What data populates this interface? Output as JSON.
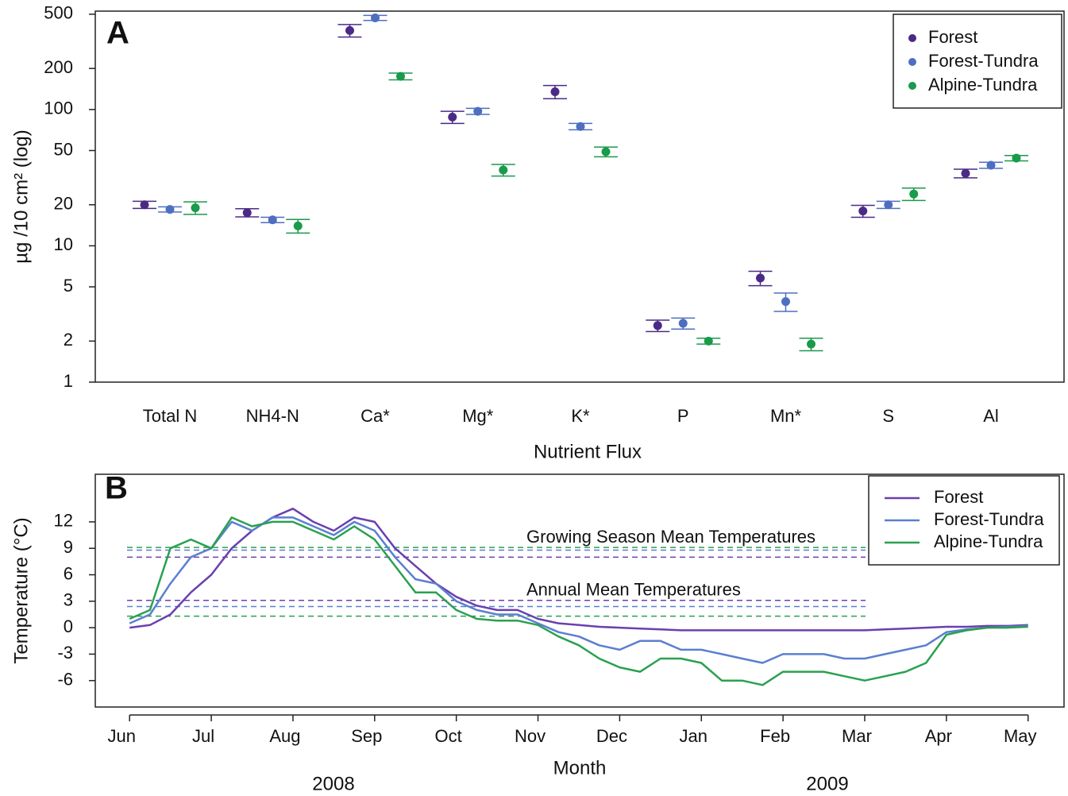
{
  "chart_data": [
    {
      "type": "dot",
      "panel_label": "A",
      "x_label": "Nutrient Flux",
      "y_label": "µg /10 cm² (log)",
      "log_scale": true,
      "ylim": [
        1,
        527
      ],
      "yticks": [
        1,
        2,
        5,
        10,
        20,
        50,
        100,
        200,
        500
      ],
      "grid": false,
      "legend": "upper right",
      "categories": [
        "Total N",
        "NH4-N",
        "Ca*",
        "Mg*",
        "K*",
        "P",
        "Mn*",
        "S",
        "Al"
      ],
      "series": [
        {
          "name": "Forest",
          "color": "#4b2a86",
          "values": [
            20,
            17.5,
            380,
            88,
            135,
            2.6,
            5.8,
            18,
            34
          ],
          "errors": [
            1.2,
            1.2,
            40,
            9,
            15,
            0.25,
            0.7,
            1.8,
            2.5
          ]
        },
        {
          "name": "Forest-Tundra",
          "color": "#4e6fc0",
          "values": [
            18.5,
            15.5,
            470,
            97,
            75,
            2.7,
            3.9,
            20,
            39
          ],
          "errors": [
            0.8,
            0.7,
            20,
            5,
            4,
            0.25,
            0.6,
            1.2,
            2
          ]
        },
        {
          "name": "Alpine-Tundra",
          "color": "#1a9a4b",
          "values": [
            19,
            14,
            175,
            36,
            49,
            2,
            1.9,
            24,
            44
          ],
          "errors": [
            2,
            1.6,
            10,
            3.5,
            4,
            0.1,
            0.2,
            2.5,
            2
          ]
        }
      ]
    },
    {
      "type": "line",
      "panel_label": "B",
      "x_label": "Month",
      "y_label": "Temperature (°C)",
      "x_group_labels": [
        "2008",
        "2009"
      ],
      "annotations": [
        "Growing Season Mean Temperatures",
        "Annual Mean Temperatures"
      ],
      "xlim": [
        -0.42,
        11.44
      ],
      "ylim": [
        -9,
        17.4
      ],
      "yticks": [
        -6,
        -3,
        0,
        3,
        6,
        9,
        12
      ],
      "grid": false,
      "legend": "upper right",
      "xticks": [
        {
          "value": 0,
          "label": "Jun"
        },
        {
          "value": 1,
          "label": "Jul"
        },
        {
          "value": 2,
          "label": "Aug"
        },
        {
          "value": 3,
          "label": "Sep"
        },
        {
          "value": 4,
          "label": "Oct"
        },
        {
          "value": 5,
          "label": "Nov"
        },
        {
          "value": 6,
          "label": "Dec"
        },
        {
          "value": 7,
          "label": "Jan"
        },
        {
          "value": 8,
          "label": "Feb"
        },
        {
          "value": 9,
          "label": "Mar"
        },
        {
          "value": 10,
          "label": "Apr"
        },
        {
          "value": 11,
          "label": "May"
        }
      ],
      "x": [
        0,
        0.25,
        0.5,
        0.75,
        1,
        1.25,
        1.5,
        1.75,
        2,
        2.25,
        2.5,
        2.75,
        3,
        3.25,
        3.5,
        3.75,
        4,
        4.25,
        4.5,
        4.75,
        5,
        5.25,
        5.5,
        5.75,
        6,
        6.25,
        6.5,
        6.75,
        7,
        7.25,
        7.5,
        7.75,
        8,
        8.25,
        8.5,
        8.75,
        9,
        9.25,
        9.5,
        9.75,
        10,
        10.25,
        10.5,
        10.75,
        11
      ],
      "series": [
        {
          "name": "Forest",
          "color": "#6a40b0",
          "growing_mean": 8,
          "annual_mean": 3.1,
          "values": [
            0,
            0.3,
            1.5,
            4,
            6,
            9,
            11,
            12.5,
            13.5,
            12,
            11,
            12.5,
            12,
            9,
            7,
            5,
            3.5,
            2.5,
            2,
            2,
            1,
            0.5,
            0.3,
            0.1,
            0,
            -0.1,
            -0.2,
            -0.3,
            -0.3,
            -0.3,
            -0.3,
            -0.3,
            -0.3,
            -0.3,
            -0.3,
            -0.3,
            -0.3,
            -0.2,
            -0.1,
            0,
            0.1,
            0.1,
            0.2,
            0.2,
            0.3
          ]
        },
        {
          "name": "Forest-Tundra",
          "color": "#5b7fd0",
          "growing_mean": 8.8,
          "annual_mean": 2.4,
          "values": [
            0.5,
            1.5,
            5,
            8,
            9,
            12,
            11,
            12.5,
            12.5,
            11.5,
            10.5,
            12,
            11,
            8,
            5.5,
            5,
            3,
            2,
            1.5,
            1.5,
            0.5,
            -0.5,
            -1,
            -2,
            -2.5,
            -1.5,
            -1.5,
            -2.5,
            -2.5,
            -3,
            -3.5,
            -4,
            -3,
            -3,
            -3,
            -3.5,
            -3.5,
            -3,
            -2.5,
            -2,
            -0.5,
            -0.2,
            0,
            0.1,
            0.2
          ]
        },
        {
          "name": "Alpine-Tundra",
          "color": "#2aa14f",
          "growing_mean": 9.1,
          "annual_mean": 1.3,
          "values": [
            1,
            2,
            9,
            10,
            9,
            12.5,
            11.5,
            12,
            12,
            11,
            10,
            11.5,
            10,
            7,
            4,
            4,
            2,
            1,
            0.8,
            0.8,
            0.3,
            -1,
            -2,
            -3.5,
            -4.5,
            -5,
            -3.5,
            -3.5,
            -4,
            -6,
            -6,
            -6.5,
            -5,
            -5,
            -5,
            -5.5,
            -6,
            -5.5,
            -5,
            -4,
            -0.8,
            -0.3,
            0,
            0,
            0.1
          ]
        }
      ]
    }
  ]
}
